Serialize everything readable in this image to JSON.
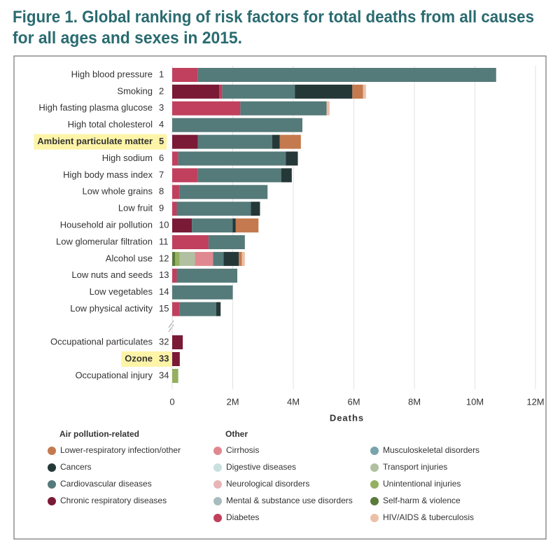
{
  "chart_data": {
    "type": "stacked_barh",
    "title_lines": [
      "Figure 1. Global ranking of risk factors for total deaths from all causes",
      "for all ages and sexes in 2015."
    ],
    "xlabel": "Deaths",
    "categories": [
      "High blood pressure",
      "Smoking",
      "High fasting plasma glucose",
      "High total cholesterol",
      "Ambient particulate matter",
      "High sodium",
      "High body mass index",
      "Low whole grains",
      "Low fruit",
      "Household air pollution",
      "Low glomerular filtration",
      "Alcohol use",
      "Low nuts and seeds",
      "Low vegetables",
      "Low physical activity",
      "Occupational particulates",
      "Ozone",
      "Occupational injury"
    ],
    "ranks": [
      1,
      2,
      3,
      4,
      5,
      6,
      7,
      8,
      9,
      10,
      11,
      12,
      13,
      14,
      15,
      32,
      33,
      34
    ],
    "highlight_rows": [
      4,
      16
    ],
    "legend_groups": [
      "Air pollution-related",
      "Other"
    ],
    "series": [
      {
        "name": "Lower-respiratory infection/other",
        "color": "#c47a4e",
        "values": [
          0,
          350000,
          0,
          0,
          700000,
          0,
          0,
          0,
          0,
          750000,
          0,
          100000,
          0,
          0,
          0,
          0,
          0,
          0
        ]
      },
      {
        "name": "Cancers",
        "color": "#253838",
        "values": [
          0,
          1900000,
          0,
          0,
          250000,
          400000,
          350000,
          0,
          300000,
          100000,
          0,
          500000,
          0,
          0,
          150000,
          0,
          0,
          0
        ]
      },
      {
        "name": "Cardiovascular diseases",
        "color": "#557a7a",
        "values": [
          9850000,
          2400000,
          2850000,
          4300000,
          2450000,
          3550000,
          2750000,
          2900000,
          2450000,
          1350000,
          1200000,
          350000,
          2000000,
          2000000,
          1200000,
          0,
          0,
          0
        ]
      },
      {
        "name": "Chronic respiratory diseases",
        "color": "#7a1a36",
        "values": [
          0,
          1550000,
          0,
          0,
          850000,
          0,
          0,
          0,
          0,
          650000,
          0,
          0,
          0,
          0,
          0,
          350000,
          250000,
          0
        ]
      },
      {
        "name": "Cirrhosis",
        "color": "#e08890",
        "values": [
          0,
          0,
          0,
          0,
          0,
          0,
          0,
          0,
          0,
          0,
          0,
          600000,
          0,
          0,
          0,
          0,
          0,
          0
        ]
      },
      {
        "name": "Digestive diseases",
        "color": "#c8e0e0",
        "values": [
          0,
          0,
          0,
          0,
          0,
          0,
          0,
          0,
          0,
          0,
          0,
          0,
          0,
          0,
          0,
          0,
          0,
          0
        ]
      },
      {
        "name": "Neurological disorders",
        "color": "#e8b4b8",
        "values": [
          0,
          0,
          0,
          0,
          0,
          0,
          0,
          0,
          0,
          0,
          0,
          0,
          0,
          0,
          0,
          0,
          0,
          0
        ]
      },
      {
        "name": "Mental & substance use disorders",
        "color": "#a8bcc0",
        "values": [
          0,
          0,
          0,
          0,
          0,
          0,
          0,
          0,
          0,
          0,
          0,
          0,
          0,
          0,
          0,
          0,
          0,
          0
        ]
      },
      {
        "name": "Diabetes",
        "color": "#c0405e",
        "values": [
          850000,
          100000,
          2250000,
          0,
          0,
          200000,
          850000,
          250000,
          150000,
          0,
          1200000,
          0,
          150000,
          0,
          250000,
          0,
          0,
          0
        ]
      },
      {
        "name": "Musculoskeletal disorders",
        "color": "#7aa4ac",
        "values": [
          0,
          0,
          0,
          0,
          0,
          0,
          0,
          0,
          0,
          0,
          0,
          0,
          0,
          0,
          0,
          0,
          0,
          0
        ]
      },
      {
        "name": "Transport injuries",
        "color": "#b0c0a0",
        "values": [
          0,
          0,
          0,
          0,
          0,
          0,
          0,
          0,
          0,
          0,
          0,
          500000,
          0,
          0,
          0,
          0,
          0,
          0
        ]
      },
      {
        "name": "Unintentional injuries",
        "color": "#94b060",
        "values": [
          0,
          0,
          0,
          0,
          0,
          0,
          0,
          0,
          0,
          0,
          0,
          150000,
          0,
          0,
          0,
          0,
          0,
          200000
        ]
      },
      {
        "name": "Self-harm & violence",
        "color": "#5a7a3a",
        "values": [
          0,
          0,
          0,
          0,
          0,
          0,
          0,
          0,
          0,
          0,
          0,
          100000,
          0,
          0,
          0,
          0,
          0,
          0
        ]
      },
      {
        "name": "HIV/AIDS & tuberculosis",
        "color": "#ecc0a8",
        "values": [
          0,
          100000,
          100000,
          0,
          0,
          0,
          0,
          0,
          0,
          0,
          0,
          100000,
          0,
          0,
          0,
          0,
          0,
          0
        ]
      }
    ],
    "xlim": [
      0,
      12000000
    ],
    "xticks": [
      0,
      {
        "value": 2000000,
        "label": "2M"
      },
      {
        "value": 4000000,
        "label": "4M"
      },
      {
        "value": 6000000,
        "label": "6M"
      },
      {
        "value": 8000000,
        "label": "8M"
      },
      {
        "value": 10000000,
        "label": "10M"
      },
      {
        "value": 12000000,
        "label": "12M"
      }
    ],
    "grid": true
  }
}
